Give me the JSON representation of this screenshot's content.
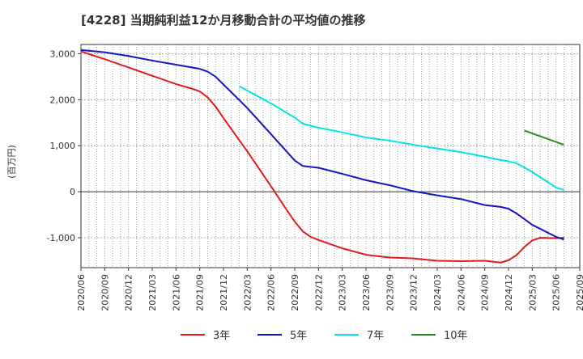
{
  "chart_data": {
    "type": "line",
    "title": "[4228]  当期純利益12か月移動合計の平均値の推移",
    "ylabel": "(百万円)",
    "xlabel": "",
    "ylim": [
      -1650,
      3200
    ],
    "yticks": [
      3000,
      2000,
      1000,
      0,
      -1000
    ],
    "ytick_labels": [
      "3,000",
      "2,000",
      "1,000",
      "0",
      "-1,000"
    ],
    "x_range": [
      "2020/06",
      "2025/09"
    ],
    "xtick_labels": [
      "2020/06",
      "2020/09",
      "2020/12",
      "2021/03",
      "2021/06",
      "2021/09",
      "2021/12",
      "2022/03",
      "2022/06",
      "2022/09",
      "2022/12",
      "2023/03",
      "2023/06",
      "2023/09",
      "2023/12",
      "2024/03",
      "2024/06",
      "2024/09",
      "2024/12",
      "2025/03",
      "2025/06",
      "2025/09"
    ],
    "grid": true,
    "legend_position": "bottom",
    "series": [
      {
        "name": "3年",
        "color": "#e31a1c",
        "points": [
          [
            "2020/06",
            3050
          ],
          [
            "2020/09",
            2880
          ],
          [
            "2020/12",
            2700
          ],
          [
            "2021/03",
            2520
          ],
          [
            "2021/06",
            2340
          ],
          [
            "2021/08",
            2240
          ],
          [
            "2021/09",
            2180
          ],
          [
            "2021/10",
            2050
          ],
          [
            "2021/11",
            1850
          ],
          [
            "2021/12",
            1600
          ],
          [
            "2022/03",
            880
          ],
          [
            "2022/06",
            120
          ],
          [
            "2022/08",
            -400
          ],
          [
            "2022/09",
            -650
          ],
          [
            "2022/10",
            -860
          ],
          [
            "2022/11",
            -980
          ],
          [
            "2022/12",
            -1050
          ],
          [
            "2023/03",
            -1230
          ],
          [
            "2023/06",
            -1370
          ],
          [
            "2023/09",
            -1430
          ],
          [
            "2023/12",
            -1450
          ],
          [
            "2024/03",
            -1500
          ],
          [
            "2024/06",
            -1510
          ],
          [
            "2024/09",
            -1500
          ],
          [
            "2024/11",
            -1540
          ],
          [
            "2024/12",
            -1490
          ],
          [
            "2025/01",
            -1380
          ],
          [
            "2025/02",
            -1200
          ],
          [
            "2025/03",
            -1060
          ],
          [
            "2025/04",
            -1000
          ],
          [
            "2025/06",
            -1010
          ],
          [
            "2025/07",
            -1000
          ]
        ]
      },
      {
        "name": "5年",
        "color": "#1414c8",
        "points": [
          [
            "2020/06",
            3080
          ],
          [
            "2020/09",
            3030
          ],
          [
            "2020/12",
            2950
          ],
          [
            "2021/03",
            2850
          ],
          [
            "2021/06",
            2760
          ],
          [
            "2021/09",
            2670
          ],
          [
            "2021/10",
            2610
          ],
          [
            "2021/11",
            2500
          ],
          [
            "2021/12",
            2330
          ],
          [
            "2022/03",
            1820
          ],
          [
            "2022/06",
            1250
          ],
          [
            "2022/09",
            680
          ],
          [
            "2022/10",
            560
          ],
          [
            "2022/12",
            520
          ],
          [
            "2023/03",
            390
          ],
          [
            "2023/06",
            250
          ],
          [
            "2023/09",
            140
          ],
          [
            "2023/12",
            10
          ],
          [
            "2024/03",
            -80
          ],
          [
            "2024/06",
            -160
          ],
          [
            "2024/09",
            -290
          ],
          [
            "2024/11",
            -330
          ],
          [
            "2024/12",
            -370
          ],
          [
            "2025/01",
            -470
          ],
          [
            "2025/03",
            -720
          ],
          [
            "2025/06",
            -980
          ],
          [
            "2025/07",
            -1040
          ]
        ]
      },
      {
        "name": "7年",
        "color": "#00e5e5",
        "points": [
          [
            "2022/02",
            2290
          ],
          [
            "2022/06",
            1920
          ],
          [
            "2022/09",
            1610
          ],
          [
            "2022/10",
            1480
          ],
          [
            "2022/12",
            1390
          ],
          [
            "2023/03",
            1290
          ],
          [
            "2023/06",
            1180
          ],
          [
            "2023/09",
            1110
          ],
          [
            "2023/12",
            1020
          ],
          [
            "2024/03",
            940
          ],
          [
            "2024/06",
            860
          ],
          [
            "2024/09",
            760
          ],
          [
            "2024/11",
            690
          ],
          [
            "2024/12",
            660
          ],
          [
            "2025/01",
            620
          ],
          [
            "2025/03",
            430
          ],
          [
            "2025/06",
            90
          ],
          [
            "2025/07",
            40
          ]
        ]
      },
      {
        "name": "10年",
        "color": "#2a8a2a",
        "points": [
          [
            "2025/02",
            1330
          ],
          [
            "2025/07",
            1020
          ]
        ]
      }
    ]
  }
}
